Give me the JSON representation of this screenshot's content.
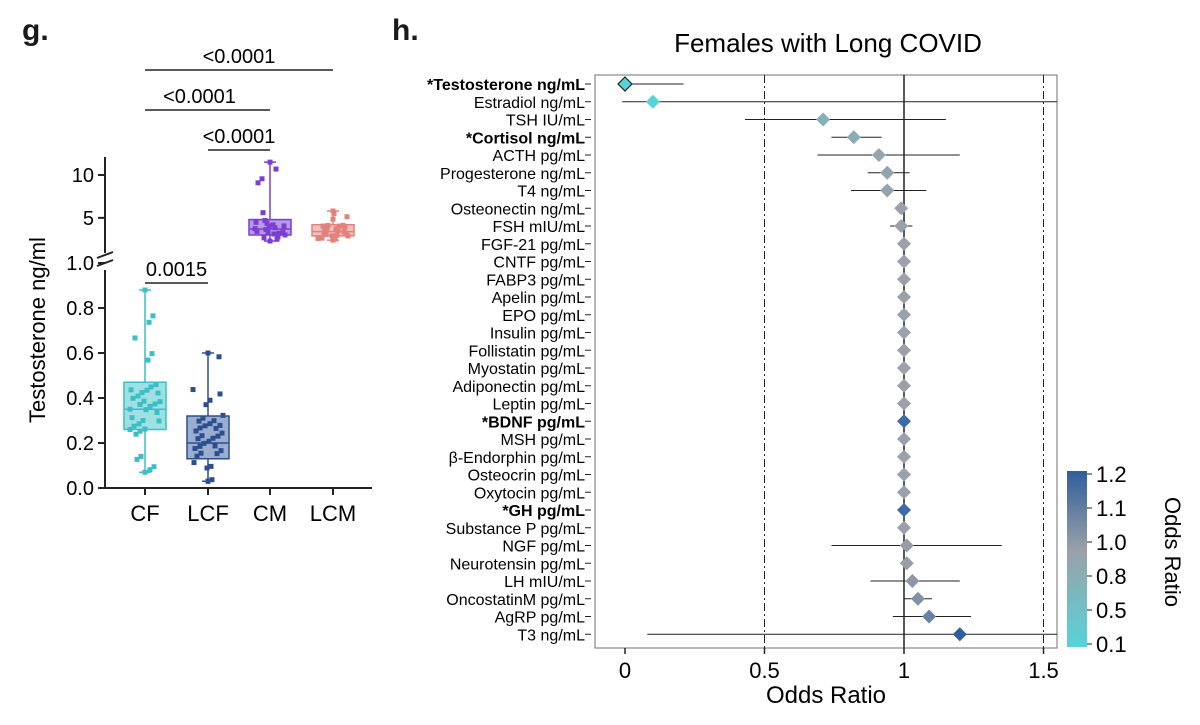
{
  "chart_data": [
    {
      "type": "box",
      "panel_label": "g.",
      "title": "",
      "ylabel": "Testosterone ng/ml",
      "xlabel": "",
      "y_axis_segments": [
        {
          "range": [
            0,
            1.0
          ],
          "ticks": [
            "0.0",
            "0.2",
            "0.4",
            "0.6",
            "0.8",
            "1.0"
          ]
        },
        {
          "range": [
            2,
            11
          ],
          "ticks": [
            "5",
            "10"
          ]
        }
      ],
      "categories": [
        "CF",
        "LCF",
        "CM",
        "LCM"
      ],
      "series": [
        {
          "name": "CF",
          "color": "#3cbfc4",
          "fill": "#9fe1e3",
          "min": 0.07,
          "q1": 0.26,
          "median": 0.35,
          "q3": 0.47,
          "max": 0.88
        },
        {
          "name": "LCF",
          "color": "#2e4f8f",
          "fill": "#9aafcf",
          "min": 0.03,
          "q1": 0.13,
          "median": 0.2,
          "q3": 0.32,
          "max": 0.6
        },
        {
          "name": "CM",
          "color": "#7a3fd1",
          "fill": "#b79aea",
          "min": 2.3,
          "q1": 3.0,
          "median": 3.7,
          "q3": 4.8,
          "max": 11.5
        },
        {
          "name": "LCM",
          "color": "#e3827c",
          "fill": "#f2c1bd",
          "min": 2.4,
          "q1": 2.9,
          "median": 3.4,
          "q3": 4.2,
          "max": 5.8
        }
      ],
      "significance": [
        {
          "label": "<0.0001",
          "from": "CF",
          "to": "LCM"
        },
        {
          "label": "<0.0001",
          "from": "CF",
          "to": "CM"
        },
        {
          "label": "<0.0001",
          "from": "LCF",
          "to": "CM"
        },
        {
          "label": "0.0015",
          "from": "CF",
          "to": "LCF"
        }
      ]
    },
    {
      "type": "forest",
      "panel_label": "h.",
      "title": "Females with Long COVID",
      "xlabel": "Odds Ratio",
      "xlim": [
        -0.1,
        1.55
      ],
      "xticks": [
        0,
        0.5,
        1,
        1.5
      ],
      "xtick_labels": [
        "0",
        "0.5",
        "1",
        "1.5"
      ],
      "reference_lines": [
        0.5,
        1,
        1.5
      ],
      "colorbar": {
        "title": "Odds Ratio",
        "min": 0.1,
        "max": 1.2,
        "tick_labels": [
          "1.2",
          "1.1",
          "1.0",
          "0.8",
          "0.5",
          "0.1"
        ],
        "colors": [
          "#2f5e9c",
          "#9aa1a8",
          "#57d3d9"
        ]
      },
      "rows": [
        {
          "label": "*Testosterone ng/mL",
          "bold": true,
          "or": 0.0,
          "lo": -0.01,
          "hi": 0.21
        },
        {
          "label": "Estradiol ng/mL",
          "bold": false,
          "or": 0.1,
          "lo": -0.01,
          "hi": 1.56
        },
        {
          "label": "TSH IU/mL",
          "bold": false,
          "or": 0.71,
          "lo": 0.43,
          "hi": 1.15
        },
        {
          "label": "*Cortisol ng/mL",
          "bold": true,
          "or": 0.82,
          "lo": 0.74,
          "hi": 0.92
        },
        {
          "label": "ACTH pg/mL",
          "bold": false,
          "or": 0.91,
          "lo": 0.69,
          "hi": 1.2
        },
        {
          "label": "Progesterone ng/mL",
          "bold": false,
          "or": 0.94,
          "lo": 0.87,
          "hi": 1.02
        },
        {
          "label": "T4 ng/mL",
          "bold": false,
          "or": 0.94,
          "lo": 0.81,
          "hi": 1.08
        },
        {
          "label": "Osteonectin ng/mL",
          "bold": false,
          "or": 0.99,
          "lo": 0.97,
          "hi": 1.01
        },
        {
          "label": "FSH mIU/mL",
          "bold": false,
          "or": 0.99,
          "lo": 0.95,
          "hi": 1.03
        },
        {
          "label": "FGF-21 pg/mL",
          "bold": false,
          "or": 1.0,
          "lo": 0.99,
          "hi": 1.01
        },
        {
          "label": "CNTF pg/mL",
          "bold": false,
          "or": 1.0,
          "lo": 0.99,
          "hi": 1.01
        },
        {
          "label": "FABP3 pg/mL",
          "bold": false,
          "or": 1.0,
          "lo": 0.99,
          "hi": 1.01
        },
        {
          "label": "Apelin pg/mL",
          "bold": false,
          "or": 1.0,
          "lo": 0.99,
          "hi": 1.01
        },
        {
          "label": "EPO pg/mL",
          "bold": false,
          "or": 1.0,
          "lo": 0.99,
          "hi": 1.01
        },
        {
          "label": "Insulin pg/mL",
          "bold": false,
          "or": 1.0,
          "lo": 0.99,
          "hi": 1.01
        },
        {
          "label": "Follistatin pg/mL",
          "bold": false,
          "or": 1.0,
          "lo": 0.99,
          "hi": 1.01
        },
        {
          "label": "Myostatin pg/mL",
          "bold": false,
          "or": 1.0,
          "lo": 0.99,
          "hi": 1.01
        },
        {
          "label": "Adiponectin pg/mL",
          "bold": false,
          "or": 1.0,
          "lo": 0.99,
          "hi": 1.01
        },
        {
          "label": "Leptin pg/mL",
          "bold": false,
          "or": 1.0,
          "lo": 0.99,
          "hi": 1.01
        },
        {
          "label": "*BDNF pg/mL",
          "bold": true,
          "or": 1.0,
          "lo": 0.99,
          "hi": 1.01
        },
        {
          "label": "MSH pg/mL",
          "bold": false,
          "or": 1.0,
          "lo": 0.99,
          "hi": 1.01
        },
        {
          "label": "β-Endorphin pg/mL",
          "bold": false,
          "or": 1.0,
          "lo": 0.99,
          "hi": 1.01
        },
        {
          "label": "Osteocrin pg/mL",
          "bold": false,
          "or": 1.0,
          "lo": 0.99,
          "hi": 1.01
        },
        {
          "label": "Oxytocin pg/mL",
          "bold": false,
          "or": 1.0,
          "lo": 0.99,
          "hi": 1.01
        },
        {
          "label": "*GH pg/mL",
          "bold": true,
          "or": 1.0,
          "lo": 0.99,
          "hi": 1.01
        },
        {
          "label": "Substance P pg/mL",
          "bold": false,
          "or": 1.0,
          "lo": 0.99,
          "hi": 1.01
        },
        {
          "label": "NGF pg/mL",
          "bold": false,
          "or": 1.01,
          "lo": 0.74,
          "hi": 1.35
        },
        {
          "label": "Neurotensin pg/mL",
          "bold": false,
          "or": 1.01,
          "lo": 0.99,
          "hi": 1.03
        },
        {
          "label": "LH mIU/mL",
          "bold": false,
          "or": 1.03,
          "lo": 0.88,
          "hi": 1.2
        },
        {
          "label": "OncostatinM pg/mL",
          "bold": false,
          "or": 1.05,
          "lo": 1.0,
          "hi": 1.1
        },
        {
          "label": "AgRP pg/mL",
          "bold": false,
          "or": 1.09,
          "lo": 0.96,
          "hi": 1.24
        },
        {
          "label": "T3 ng/mL",
          "bold": false,
          "or": 1.2,
          "lo": 0.08,
          "hi": 1.56
        }
      ]
    }
  ]
}
